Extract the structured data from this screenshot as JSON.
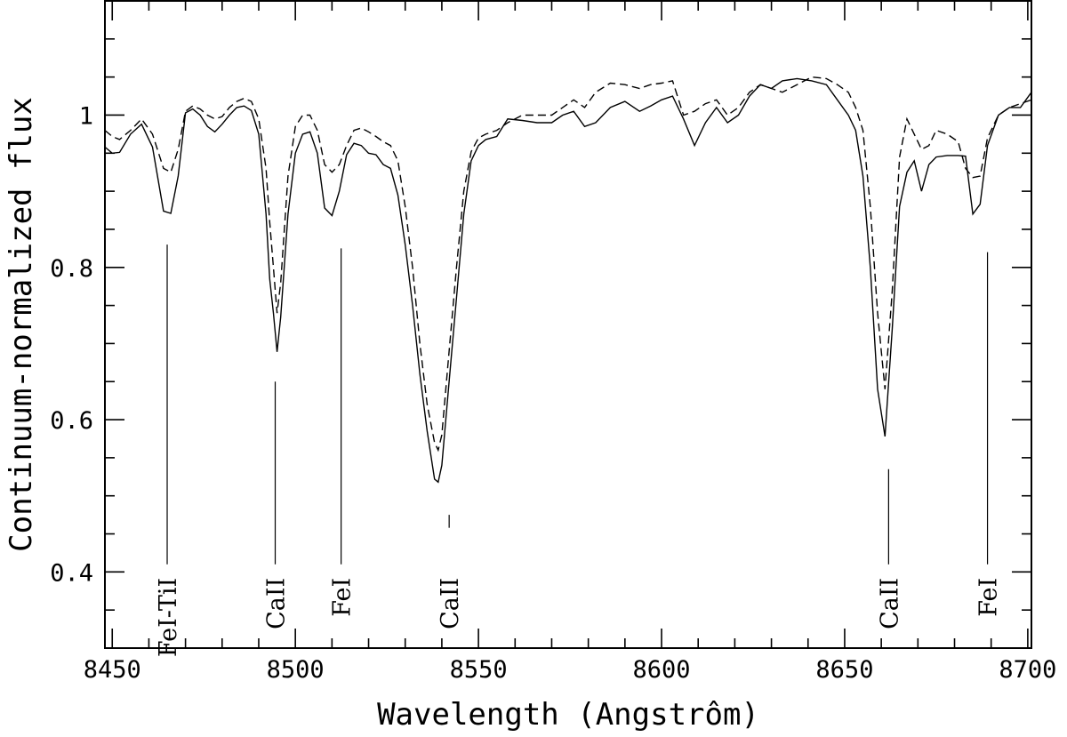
{
  "chart_data": {
    "type": "line",
    "xlabel": "Wavelength (Angstrôm)",
    "ylabel": "Continuum-normalized flux",
    "xlim": [
      8448,
      8701
    ],
    "ylim": [
      0.3,
      1.15
    ],
    "x_ticks": [
      8450,
      8500,
      8550,
      8600,
      8650,
      8700
    ],
    "y_ticks": [
      0.4,
      0.6,
      0.8,
      1
    ],
    "y_tick_labels": [
      "0.4",
      "0.6",
      "0.8",
      "1"
    ],
    "x_tick_labels": [
      "8450",
      "8500",
      "8550",
      "8600",
      "8650",
      "8700"
    ],
    "x_minor_step": 10,
    "y_minor_step": 0.05,
    "series": [
      {
        "style": "solid",
        "x": [
          8448,
          8450,
          8452,
          8455,
          8458,
          8461,
          8464,
          8466,
          8468,
          8470,
          8472,
          8474,
          8476,
          8478,
          8480,
          8482,
          8484,
          8486,
          8488,
          8490,
          8492,
          8493,
          8494,
          8495,
          8496,
          8498,
          8500,
          8502,
          8504,
          8506,
          8508,
          8510,
          8512,
          8514,
          8516,
          8518,
          8520,
          8522,
          8524,
          8526,
          8528,
          8530,
          8532,
          8534,
          8536,
          8538,
          8539,
          8540,
          8542,
          8544,
          8546,
          8548,
          8550,
          8552,
          8555,
          8558,
          8562,
          8566,
          8570,
          8573,
          8576,
          8579,
          8582,
          8586,
          8590,
          8594,
          8597,
          8600,
          8603,
          8606,
          8609,
          8612,
          8615,
          8618,
          8621,
          8624,
          8627,
          8630,
          8633,
          8637,
          8641,
          8645,
          8648,
          8651,
          8653,
          8655,
          8657,
          8659,
          8661,
          8663,
          8665,
          8667,
          8669,
          8671,
          8673,
          8675,
          8678,
          8681,
          8683,
          8685,
          8687,
          8689,
          8692,
          8695,
          8698,
          8701
        ],
        "y": [
          0.958,
          0.95,
          0.951,
          0.975,
          0.988,
          0.958,
          0.874,
          0.871,
          0.92,
          1.003,
          1.008,
          1.0,
          0.985,
          0.978,
          0.988,
          1.0,
          1.01,
          1.012,
          1.006,
          0.975,
          0.87,
          0.785,
          0.74,
          0.689,
          0.735,
          0.87,
          0.95,
          0.975,
          0.978,
          0.95,
          0.878,
          0.868,
          0.9,
          0.948,
          0.963,
          0.96,
          0.95,
          0.948,
          0.935,
          0.93,
          0.895,
          0.83,
          0.75,
          0.66,
          0.585,
          0.522,
          0.518,
          0.54,
          0.65,
          0.76,
          0.87,
          0.94,
          0.96,
          0.968,
          0.972,
          0.995,
          0.993,
          0.99,
          0.99,
          1.0,
          1.005,
          0.985,
          0.99,
          1.01,
          1.018,
          1.005,
          1.012,
          1.02,
          1.025,
          0.995,
          0.96,
          0.99,
          1.01,
          0.99,
          1.0,
          1.025,
          1.04,
          1.035,
          1.045,
          1.048,
          1.045,
          1.04,
          1.02,
          1.0,
          0.98,
          0.92,
          0.8,
          0.64,
          0.578,
          0.72,
          0.88,
          0.925,
          0.94,
          0.9,
          0.935,
          0.945,
          0.947,
          0.947,
          0.946,
          0.87,
          0.883,
          0.96,
          1.0,
          1.01,
          1.01,
          1.03
        ]
      },
      {
        "style": "dashed",
        "x": [
          8448,
          8450,
          8452,
          8455,
          8458,
          8461,
          8464,
          8466,
          8468,
          8470,
          8472,
          8474,
          8476,
          8478,
          8480,
          8482,
          8484,
          8486,
          8488,
          8490,
          8492,
          8493,
          8494,
          8495,
          8496,
          8498,
          8500,
          8502,
          8504,
          8506,
          8508,
          8510,
          8512,
          8514,
          8516,
          8518,
          8520,
          8522,
          8524,
          8526,
          8528,
          8530,
          8532,
          8534,
          8536,
          8538,
          8539,
          8540,
          8542,
          8544,
          8546,
          8548,
          8550,
          8552,
          8555,
          8558,
          8562,
          8566,
          8570,
          8573,
          8576,
          8579,
          8582,
          8586,
          8590,
          8594,
          8597,
          8600,
          8603,
          8606,
          8609,
          8612,
          8615,
          8618,
          8621,
          8624,
          8627,
          8630,
          8633,
          8637,
          8641,
          8645,
          8648,
          8651,
          8653,
          8655,
          8657,
          8659,
          8661,
          8663,
          8665,
          8667,
          8669,
          8671,
          8673,
          8675,
          8678,
          8681,
          8683,
          8685,
          8687,
          8689,
          8692,
          8695,
          8698,
          8701
        ],
        "y": [
          0.98,
          0.972,
          0.968,
          0.98,
          0.995,
          0.975,
          0.93,
          0.925,
          0.955,
          1.005,
          1.012,
          1.008,
          1.0,
          0.995,
          0.998,
          1.01,
          1.018,
          1.022,
          1.018,
          0.995,
          0.93,
          0.86,
          0.8,
          0.74,
          0.78,
          0.92,
          0.985,
          1.0,
          1.0,
          0.98,
          0.935,
          0.925,
          0.935,
          0.96,
          0.98,
          0.983,
          0.978,
          0.972,
          0.965,
          0.96,
          0.94,
          0.88,
          0.8,
          0.7,
          0.62,
          0.57,
          0.56,
          0.58,
          0.69,
          0.8,
          0.9,
          0.952,
          0.97,
          0.975,
          0.98,
          0.99,
          1.0,
          1.0,
          1.0,
          1.01,
          1.02,
          1.01,
          1.03,
          1.042,
          1.04,
          1.035,
          1.04,
          1.042,
          1.045,
          1.0,
          1.005,
          1.015,
          1.02,
          1.0,
          1.01,
          1.03,
          1.04,
          1.035,
          1.03,
          1.04,
          1.05,
          1.048,
          1.04,
          1.03,
          1.01,
          0.98,
          0.88,
          0.74,
          0.64,
          0.77,
          0.945,
          0.995,
          0.975,
          0.955,
          0.96,
          0.98,
          0.975,
          0.965,
          0.93,
          0.918,
          0.92,
          0.97,
          1.0,
          1.01,
          1.015,
          1.02
        ]
      }
    ],
    "annotations": [
      {
        "label": "FeI-TiI",
        "x": 8465,
        "line_top": 0.83,
        "line_bottom": 0.41
      },
      {
        "label": "CaII",
        "x": 8494.5,
        "line_top": 0.65,
        "line_bottom": 0.41
      },
      {
        "label": "FeI",
        "x": 8512.5,
        "line_top": 0.825,
        "line_bottom": 0.41
      },
      {
        "label": "CaII",
        "x": 8542,
        "line_top": 0.475,
        "line_bottom": 0.458
      },
      {
        "label": "CaII",
        "x": 8662,
        "line_top": 0.535,
        "line_bottom": 0.41
      },
      {
        "label": "FeI",
        "x": 8689,
        "line_top": 0.82,
        "line_bottom": 0.41
      }
    ]
  }
}
